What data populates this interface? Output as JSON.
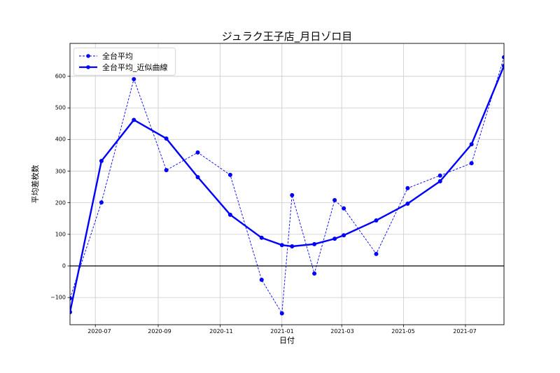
{
  "chart": {
    "title": "ジュラク王子店_月日ゾロ目",
    "xlabel": "日付",
    "ylabel": "平均差枚数",
    "legend": [
      {
        "label": "全台平均",
        "style": "dashed"
      },
      {
        "label": "全台平均_近似曲線",
        "style": "solid"
      }
    ],
    "y_ticks": [
      "600",
      "500",
      "400",
      "300",
      "200",
      "100",
      "0",
      "−100"
    ],
    "x_ticks": [
      "2020-07",
      "2020-09",
      "2020-11",
      "2021-01",
      "2021-03",
      "2021-05",
      "2021-07"
    ]
  },
  "chart_data": {
    "type": "line",
    "title": "ジュラク王子店_月日ゾロ目",
    "xlabel": "日付",
    "ylabel": "平均差枚数",
    "x": [
      "2020-06-06",
      "2020-07-07",
      "2020-08-08",
      "2020-09-09",
      "2020-10-10",
      "2020-11-11",
      "2020-12-12",
      "2021-01-01",
      "2021-01-11",
      "2021-02-02",
      "2021-02-22",
      "2021-03-03",
      "2021-04-04",
      "2021-05-05",
      "2021-06-06",
      "2021-07-07",
      "2021-08-08"
    ],
    "series": [
      {
        "name": "全台平均",
        "style": "dashed",
        "color": "#0000ff",
        "values": [
          -102,
          201,
          591,
          303,
          359,
          288,
          -44,
          -150,
          224,
          -24,
          208,
          182,
          38,
          246,
          286,
          325,
          660
        ]
      },
      {
        "name": "全台平均_近似曲線",
        "style": "solid",
        "color": "#0000ff",
        "values": [
          -146,
          332,
          462,
          403,
          281,
          162,
          89,
          66,
          62,
          69,
          86,
          97,
          144,
          197,
          268,
          385,
          633
        ]
      }
    ],
    "ylim": [
      -150,
      700
    ],
    "yticks": [
      -100,
      0,
      100,
      200,
      300,
      400,
      500,
      600
    ],
    "xticks": [
      "2020-07",
      "2020-09",
      "2020-11",
      "2021-01",
      "2021-03",
      "2021-05",
      "2021-07"
    ],
    "grid": true,
    "hline": 0,
    "legend_position": "upper left"
  }
}
